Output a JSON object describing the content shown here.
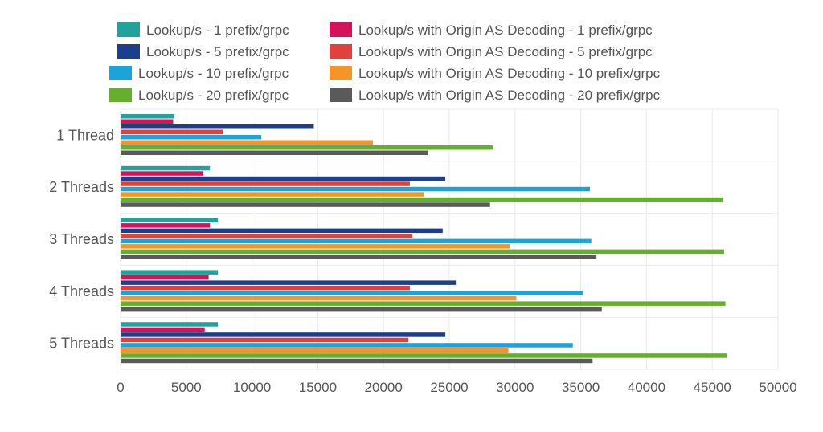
{
  "chart_data": {
    "type": "bar",
    "orientation": "horizontal",
    "title": "",
    "xlabel": "",
    "ylabel": "",
    "categories": [
      "1 Thread",
      "2 Threads",
      "3 Threads",
      "4 Threads",
      "5 Threads"
    ],
    "xlim": [
      0,
      50000
    ],
    "x_ticks": [
      0,
      5000,
      10000,
      15000,
      20000,
      25000,
      30000,
      35000,
      40000,
      45000,
      50000
    ],
    "x_tick_labels": [
      "0",
      "5000",
      "10000",
      "15000",
      "20000",
      "25000",
      "30000",
      "35000",
      "40000",
      "45000",
      "50000"
    ],
    "grid": true,
    "legend_position": "top",
    "series": [
      {
        "name": "Lookup/s - 1 prefix/grpc",
        "color": "#1fa39a",
        "values": [
          4100,
          6800,
          7400,
          7400,
          7400
        ]
      },
      {
        "name": "Lookup/s with Origin AS Decoding - 1 prefix/grpc",
        "color": "#d4145a",
        "values": [
          4000,
          6300,
          6800,
          6700,
          6400
        ]
      },
      {
        "name": "Lookup/s - 5 prefix/grpc",
        "color": "#1b3f8b",
        "values": [
          14700,
          24700,
          24500,
          25500,
          24700
        ]
      },
      {
        "name": "Lookup/s with Origin AS Decoding - 5 prefix/grpc",
        "color": "#e0413a",
        "values": [
          7800,
          22000,
          22200,
          22000,
          21900
        ]
      },
      {
        "name": "Lookup/s - 10 prefix/grpc",
        "color": "#1ca3d8",
        "values": [
          10700,
          35700,
          35800,
          35200,
          34400
        ]
      },
      {
        "name": "Lookup/s with Origin AS Decoding - 10 prefix/grpc",
        "color": "#f39528",
        "values": [
          19200,
          23100,
          29600,
          30100,
          29500
        ]
      },
      {
        "name": "Lookup/s - 20 prefix/grpc",
        "color": "#66ae2d",
        "values": [
          28300,
          45800,
          45900,
          46000,
          46100
        ]
      },
      {
        "name": "Lookup/s with Origin AS Decoding - 20 prefix/grpc",
        "color": "#5a5a5a",
        "values": [
          23400,
          28100,
          36200,
          36600,
          35900
        ]
      }
    ]
  },
  "colors": {
    "grid": "#e9e9e9",
    "text": "#555555",
    "background": "#ffffff"
  }
}
